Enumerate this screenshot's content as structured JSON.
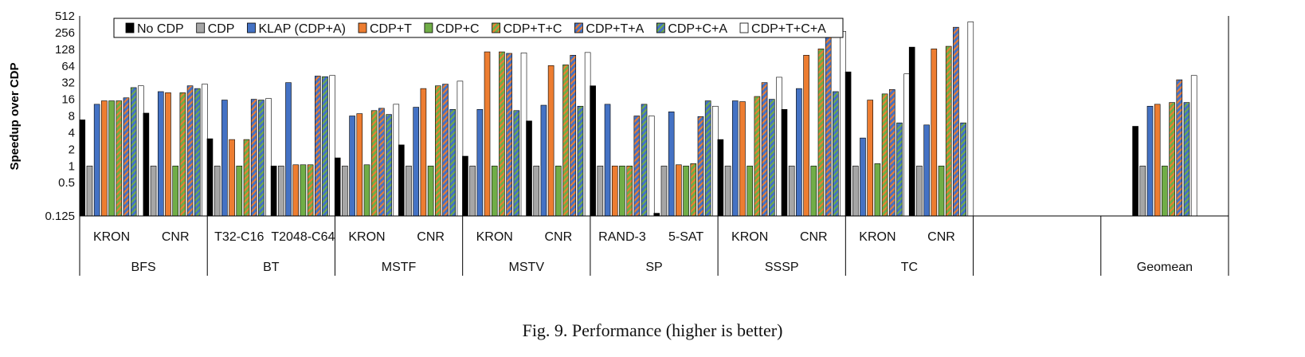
{
  "figure_caption": "Fig. 9.  Performance (higher is better)",
  "chart_data": {
    "type": "bar",
    "title": "",
    "ylabel": "Speedup over CDP",
    "yscale": "log2",
    "ylim": [
      0.125,
      512
    ],
    "yticks": [
      "0.125",
      "0.5",
      "1",
      "2",
      "4",
      "8",
      "16",
      "32",
      "64",
      "128",
      "256",
      "512"
    ],
    "ytick_values": [
      0.125,
      0.5,
      1,
      2,
      4,
      8,
      16,
      32,
      64,
      128,
      256,
      512
    ],
    "legend_position": "top-left",
    "series": [
      {
        "name": "No CDP",
        "color": "#000000",
        "pattern": "solid"
      },
      {
        "name": "CDP",
        "color": "#a6a6a6",
        "pattern": "solid"
      },
      {
        "name": "KLAP (CDP+A)",
        "color": "#4472c4",
        "pattern": "solid"
      },
      {
        "name": "CDP+T",
        "color": "#ed7d31",
        "pattern": "solid"
      },
      {
        "name": "CDP+C",
        "color": "#70ad47",
        "pattern": "solid"
      },
      {
        "name": "CDP+T+C",
        "color": "#70ad47",
        "pattern": "stripe-orange"
      },
      {
        "name": "CDP+T+A",
        "color": "#4472c4",
        "pattern": "stripe-orange"
      },
      {
        "name": "CDP+C+A",
        "color": "#4472c4",
        "pattern": "stripe-green"
      },
      {
        "name": "CDP+T+C+A",
        "color": "#ffffff",
        "pattern": "solid"
      }
    ],
    "groups": [
      {
        "name": "BFS",
        "datasets": [
          {
            "label": "KRON",
            "values": [
              6.8,
              1,
              13,
              15,
              15,
              15,
              17,
              26,
              28
            ]
          },
          {
            "label": "CNR",
            "values": [
              9,
              1,
              22,
              21,
              1,
              21,
              28,
              25,
              30
            ]
          }
        ]
      },
      {
        "name": "BT",
        "datasets": [
          {
            "label": "T32-C16",
            "values": [
              3.1,
              1,
              15.5,
              3,
              1,
              3,
              16,
              15.5,
              16.5
            ]
          },
          {
            "label": "T2048-C64",
            "values": [
              1,
              1,
              32,
              1.05,
              1.05,
              1.05,
              42,
              41,
              43
            ]
          }
        ]
      },
      {
        "name": "MSTF",
        "datasets": [
          {
            "label": "KRON",
            "values": [
              1.4,
              1,
              8,
              8.8,
              1.05,
              10,
              11,
              8.5,
              13
            ]
          },
          {
            "label": "CNR",
            "values": [
              2.4,
              1,
              11.5,
              25,
              1,
              28,
              30,
              10.5,
              34
            ]
          }
        ]
      },
      {
        "name": "MSTV",
        "datasets": [
          {
            "label": "KRON",
            "values": [
              1.5,
              1,
              10.5,
              115,
              1,
              115,
              108,
              10,
              110
            ]
          },
          {
            "label": "CNR",
            "values": [
              6.5,
              1,
              12.5,
              65,
              1,
              67,
              100,
              12,
              112
            ]
          }
        ]
      },
      {
        "name": "SP",
        "datasets": [
          {
            "label": "RAND-3",
            "values": [
              28,
              1,
              13,
              1,
              1,
              1,
              8,
              13,
              8
            ]
          },
          {
            "label": "5-SAT",
            "values": [
              0.14,
              1,
              9.5,
              1.05,
              1,
              1.1,
              7.8,
              15,
              12
            ]
          }
        ]
      },
      {
        "name": "SSSP",
        "datasets": [
          {
            "label": "KRON",
            "values": [
              3,
              1,
              15,
              14.5,
              1,
              18,
              32,
              16,
              40
            ]
          },
          {
            "label": "CNR",
            "values": [
              10.5,
              1,
              25,
              100,
              1,
              130,
              240,
              22,
              270
            ]
          }
        ]
      },
      {
        "name": "TC",
        "datasets": [
          {
            "label": "KRON",
            "values": [
              50,
              1,
              3.2,
              15.5,
              1.1,
              20,
              24,
              6,
              46
            ]
          },
          {
            "label": "CNR",
            "values": [
              140,
              1,
              5.5,
              130,
              1,
              145,
              320,
              6,
              400
            ]
          }
        ]
      },
      {
        "name": "",
        "datasets": []
      },
      {
        "name": "Geomean",
        "datasets": [
          {
            "label": "",
            "values": [
              5.2,
              1,
              12,
              13,
              1,
              14,
              36,
              14,
              43
            ]
          }
        ]
      }
    ]
  }
}
